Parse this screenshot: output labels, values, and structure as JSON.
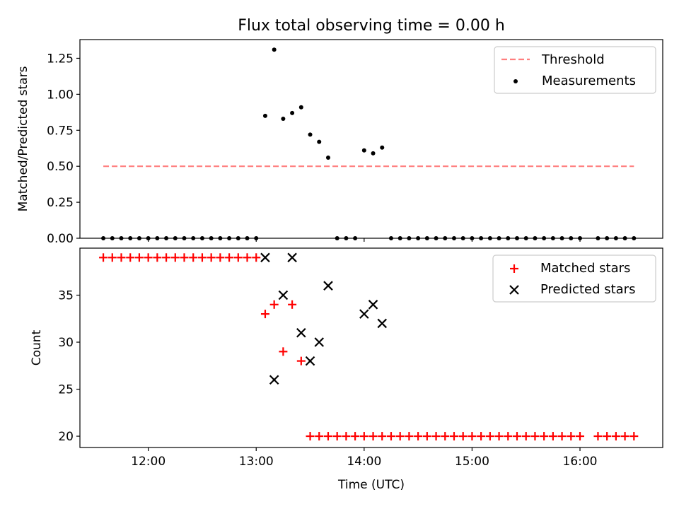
{
  "figure": {
    "title": "Flux total observing time = 0.00 h",
    "xlabel": "Time (UTC)"
  },
  "chart_data": [
    {
      "type": "scatter",
      "name": "ratio-panel",
      "ylabel": "Matched/Predicted stars",
      "xlim": [
        "11:22",
        "16:46"
      ],
      "ylim": [
        0,
        1.38
      ],
      "yticks": [
        {
          "v": 0,
          "label": "0.00"
        },
        {
          "v": 0.25,
          "label": "0.25"
        },
        {
          "v": 0.5,
          "label": "0.50"
        },
        {
          "v": 0.75,
          "label": "0.75"
        },
        {
          "v": 1.0,
          "label": "1.00"
        },
        {
          "v": 1.25,
          "label": "1.25"
        }
      ],
      "xticks": [
        "12:00",
        "13:00",
        "14:00",
        "15:00",
        "16:00"
      ],
      "show_xtick_labels": false,
      "legend_position": "top-right",
      "threshold": {
        "name": "Threshold",
        "value": 0.5,
        "x_start": "11:35",
        "x_end": "16:30",
        "color": "#ff7f7f"
      },
      "series": [
        {
          "name": "Measurements",
          "marker": "dot",
          "color": "#000000",
          "points": [
            [
              "11:35",
              0
            ],
            [
              "11:40",
              0
            ],
            [
              "11:45",
              0
            ],
            [
              "11:50",
              0
            ],
            [
              "11:55",
              0
            ],
            [
              "12:00",
              0
            ],
            [
              "12:05",
              0
            ],
            [
              "12:10",
              0
            ],
            [
              "12:15",
              0
            ],
            [
              "12:20",
              0
            ],
            [
              "12:25",
              0
            ],
            [
              "12:30",
              0
            ],
            [
              "12:35",
              0
            ],
            [
              "12:40",
              0
            ],
            [
              "12:45",
              0
            ],
            [
              "12:50",
              0
            ],
            [
              "12:55",
              0
            ],
            [
              "13:00",
              0
            ],
            [
              "13:05",
              0.85
            ],
            [
              "13:10",
              1.31
            ],
            [
              "13:15",
              0.83
            ],
            [
              "13:20",
              0.87
            ],
            [
              "13:25",
              0.91
            ],
            [
              "13:30",
              0.72
            ],
            [
              "13:35",
              0.67
            ],
            [
              "13:40",
              0.56
            ],
            [
              "13:45",
              0
            ],
            [
              "13:50",
              0
            ],
            [
              "13:55",
              0
            ],
            [
              "14:00",
              0.61
            ],
            [
              "14:05",
              0.59
            ],
            [
              "14:10",
              0.63
            ],
            [
              "14:15",
              0
            ],
            [
              "14:20",
              0
            ],
            [
              "14:25",
              0
            ],
            [
              "14:30",
              0
            ],
            [
              "14:35",
              0
            ],
            [
              "14:40",
              0
            ],
            [
              "14:45",
              0
            ],
            [
              "14:50",
              0
            ],
            [
              "14:55",
              0
            ],
            [
              "15:00",
              0
            ],
            [
              "15:05",
              0
            ],
            [
              "15:10",
              0
            ],
            [
              "15:15",
              0
            ],
            [
              "15:20",
              0
            ],
            [
              "15:25",
              0
            ],
            [
              "15:30",
              0
            ],
            [
              "15:35",
              0
            ],
            [
              "15:40",
              0
            ],
            [
              "15:45",
              0
            ],
            [
              "15:50",
              0
            ],
            [
              "15:55",
              0
            ],
            [
              "16:00",
              0
            ],
            [
              "16:10",
              0
            ],
            [
              "16:15",
              0
            ],
            [
              "16:20",
              0
            ],
            [
              "16:25",
              0
            ],
            [
              "16:30",
              0
            ]
          ]
        }
      ]
    },
    {
      "type": "scatter",
      "name": "count-panel",
      "ylabel": "Count",
      "xlim": [
        "11:22",
        "16:46"
      ],
      "ylim": [
        18.8,
        40.0
      ],
      "yticks": [
        {
          "v": 20,
          "label": "20"
        },
        {
          "v": 25,
          "label": "25"
        },
        {
          "v": 30,
          "label": "30"
        },
        {
          "v": 35,
          "label": "35"
        }
      ],
      "xticks": [
        "12:00",
        "13:00",
        "14:00",
        "15:00",
        "16:00"
      ],
      "show_xtick_labels": true,
      "legend_position": "top-right",
      "series": [
        {
          "name": "Matched stars",
          "marker": "plus",
          "color": "#ff0000",
          "points": [
            [
              "11:35",
              39
            ],
            [
              "11:40",
              39
            ],
            [
              "11:45",
              39
            ],
            [
              "11:50",
              39
            ],
            [
              "11:55",
              39
            ],
            [
              "12:00",
              39
            ],
            [
              "12:05",
              39
            ],
            [
              "12:10",
              39
            ],
            [
              "12:15",
              39
            ],
            [
              "12:20",
              39
            ],
            [
              "12:25",
              39
            ],
            [
              "12:30",
              39
            ],
            [
              "12:35",
              39
            ],
            [
              "12:40",
              39
            ],
            [
              "12:45",
              39
            ],
            [
              "12:50",
              39
            ],
            [
              "12:55",
              39
            ],
            [
              "13:00",
              39
            ],
            [
              "13:05",
              33
            ],
            [
              "13:10",
              34
            ],
            [
              "13:15",
              29
            ],
            [
              "13:20",
              34
            ],
            [
              "13:25",
              28
            ],
            [
              "13:30",
              20
            ],
            [
              "13:35",
              20
            ],
            [
              "13:40",
              20
            ],
            [
              "13:45",
              20
            ],
            [
              "13:50",
              20
            ],
            [
              "13:55",
              20
            ],
            [
              "14:00",
              20
            ],
            [
              "14:05",
              20
            ],
            [
              "14:10",
              20
            ],
            [
              "14:15",
              20
            ],
            [
              "14:20",
              20
            ],
            [
              "14:25",
              20
            ],
            [
              "14:30",
              20
            ],
            [
              "14:35",
              20
            ],
            [
              "14:40",
              20
            ],
            [
              "14:45",
              20
            ],
            [
              "14:50",
              20
            ],
            [
              "14:55",
              20
            ],
            [
              "15:00",
              20
            ],
            [
              "15:05",
              20
            ],
            [
              "15:10",
              20
            ],
            [
              "15:15",
              20
            ],
            [
              "15:20",
              20
            ],
            [
              "15:25",
              20
            ],
            [
              "15:30",
              20
            ],
            [
              "15:35",
              20
            ],
            [
              "15:40",
              20
            ],
            [
              "15:45",
              20
            ],
            [
              "15:50",
              20
            ],
            [
              "15:55",
              20
            ],
            [
              "16:00",
              20
            ],
            [
              "16:10",
              20
            ],
            [
              "16:15",
              20
            ],
            [
              "16:20",
              20
            ],
            [
              "16:25",
              20
            ],
            [
              "16:30",
              20
            ]
          ]
        },
        {
          "name": "Predicted stars",
          "marker": "x",
          "color": "#000000",
          "points": [
            [
              "13:05",
              39
            ],
            [
              "13:10",
              26
            ],
            [
              "13:15",
              35
            ],
            [
              "13:20",
              39
            ],
            [
              "13:25",
              31
            ],
            [
              "13:30",
              28
            ],
            [
              "13:35",
              30
            ],
            [
              "13:40",
              36
            ],
            [
              "14:00",
              33
            ],
            [
              "14:05",
              34
            ],
            [
              "14:10",
              32
            ]
          ]
        }
      ]
    }
  ]
}
